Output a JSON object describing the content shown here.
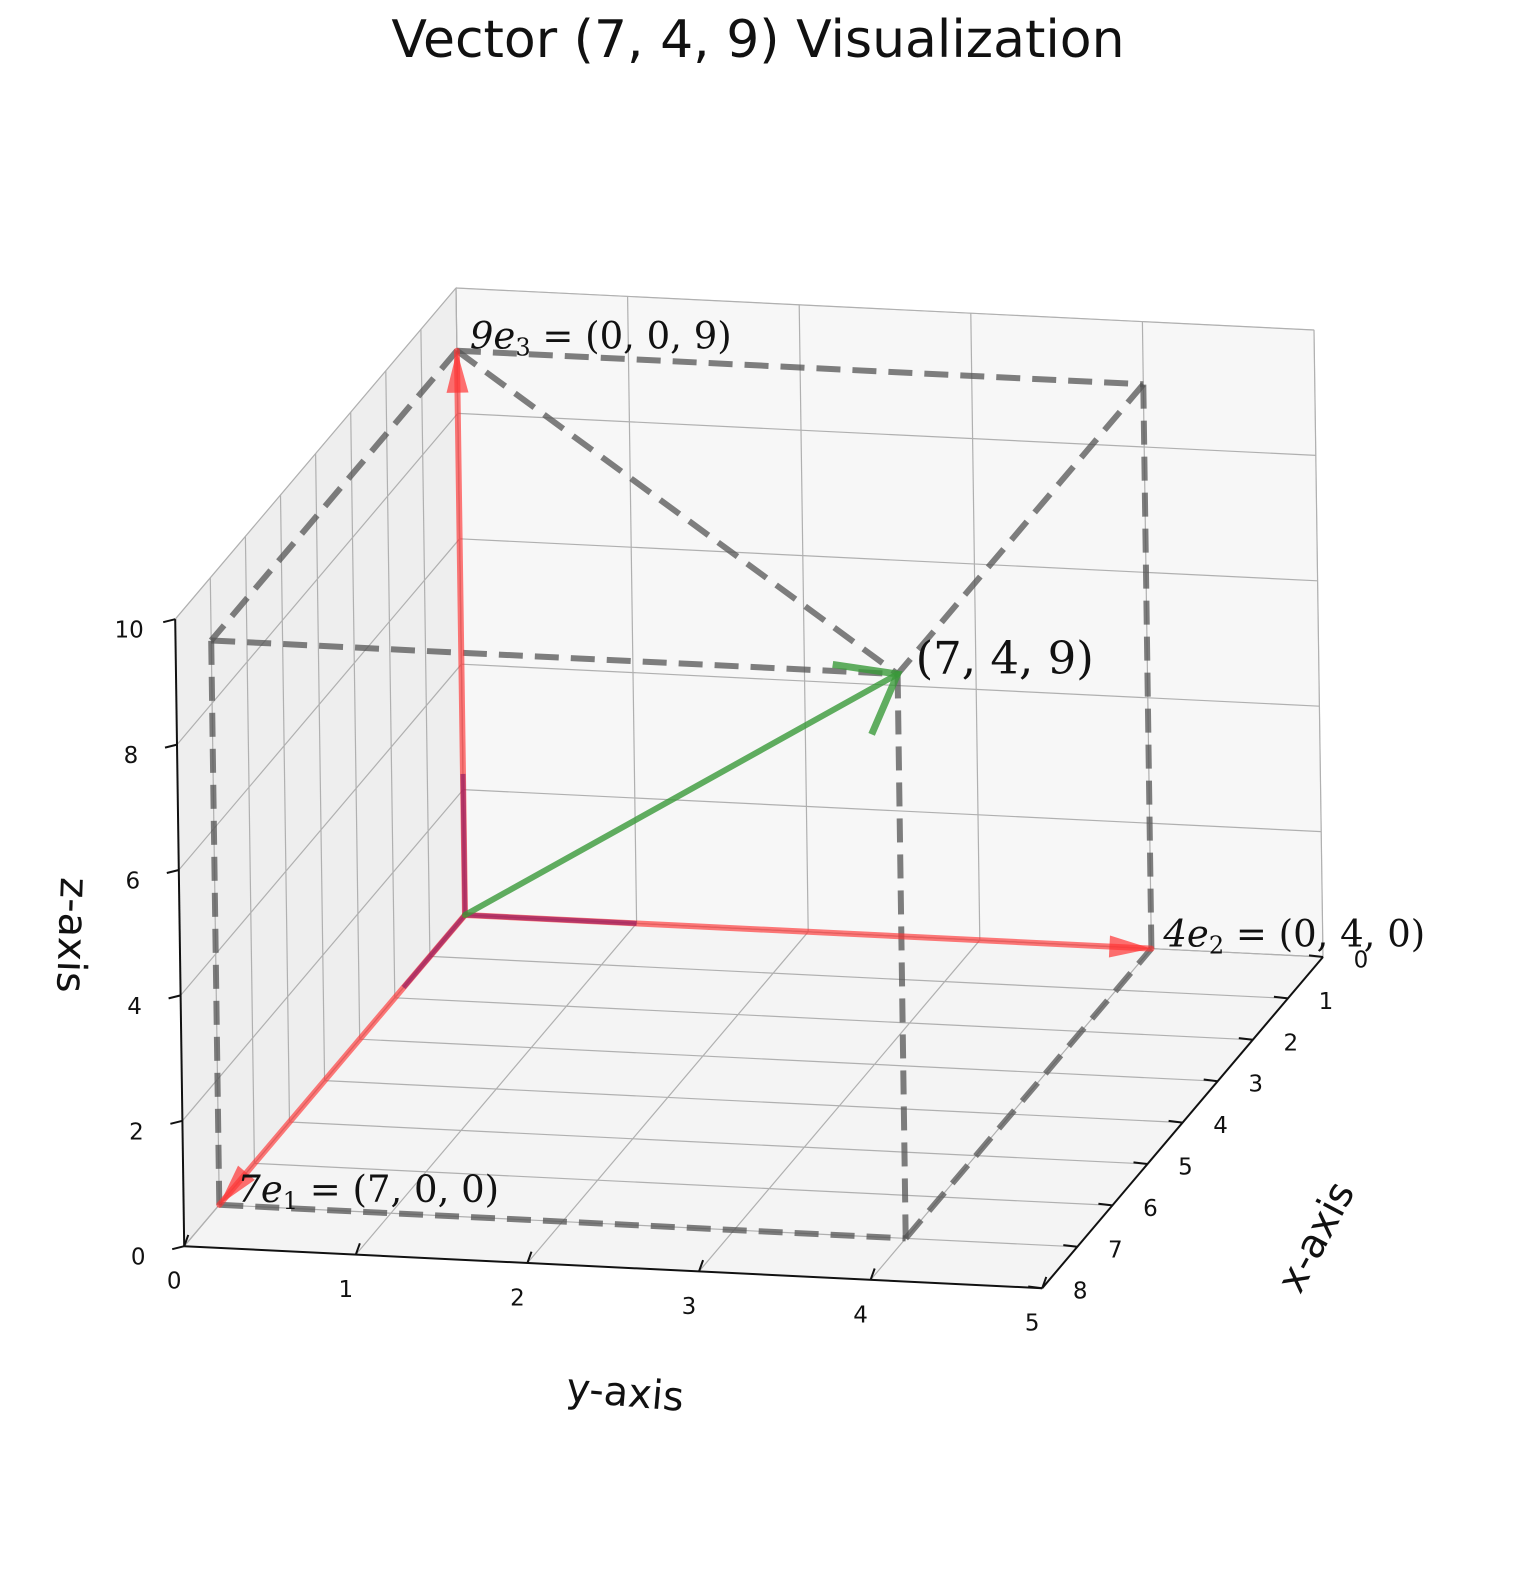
{
  "chart_data": {
    "type": "line",
    "projection": "3d",
    "title": "Vector (7, 4, 9) Visualization",
    "xlabel": "x-axis",
    "ylabel": "y-axis",
    "zlabel": "z-axis",
    "xlim": [
      0,
      8
    ],
    "ylim": [
      0,
      5
    ],
    "zlim": [
      0,
      10
    ],
    "xticks": [
      0,
      1,
      2,
      3,
      4,
      5,
      6,
      7,
      8
    ],
    "yticks": [
      0,
      1,
      2,
      3,
      4,
      5
    ],
    "zticks": [
      0,
      2,
      4,
      6,
      8,
      10
    ],
    "grid": true,
    "colors": {
      "vector": "#3a9a3a",
      "components": "#ff3333",
      "guides": "#555555",
      "pane": "#f2f2f2",
      "gridline": "#b0b0b0"
    },
    "vector": {
      "tip": [
        7,
        4,
        9
      ],
      "label": "(7, 4, 9)"
    },
    "components": [
      {
        "tip": [
          7,
          0,
          0
        ],
        "label_main": "7e",
        "label_sub": "1",
        "label_rest": " = (7, 0, 0)"
      },
      {
        "tip": [
          0,
          4,
          0
        ],
        "label_main": "4e",
        "label_sub": "2",
        "label_rest": " = (0, 4, 0)"
      },
      {
        "tip": [
          0,
          0,
          9
        ],
        "label_main": "9e",
        "label_sub": "3",
        "label_rest": " = (0, 0, 9)"
      }
    ],
    "guide_edges": [
      [
        [
          7,
          0,
          0
        ],
        [
          7,
          4,
          0
        ]
      ],
      [
        [
          7,
          4,
          0
        ],
        [
          0,
          4,
          0
        ]
      ],
      [
        [
          7,
          4,
          0
        ],
        [
          7,
          4,
          9
        ]
      ],
      [
        [
          7,
          0,
          0
        ],
        [
          7,
          0,
          9
        ]
      ],
      [
        [
          7,
          0,
          9
        ],
        [
          7,
          4,
          9
        ]
      ],
      [
        [
          0,
          0,
          9
        ],
        [
          7,
          4,
          9
        ]
      ],
      [
        [
          0,
          0,
          9
        ],
        [
          7,
          0,
          9
        ]
      ],
      [
        [
          0,
          0,
          9
        ],
        [
          0,
          4,
          9
        ]
      ],
      [
        [
          0,
          4,
          9
        ],
        [
          7,
          4,
          9
        ]
      ],
      [
        [
          0,
          4,
          0
        ],
        [
          0,
          4,
          9
        ]
      ]
    ]
  }
}
